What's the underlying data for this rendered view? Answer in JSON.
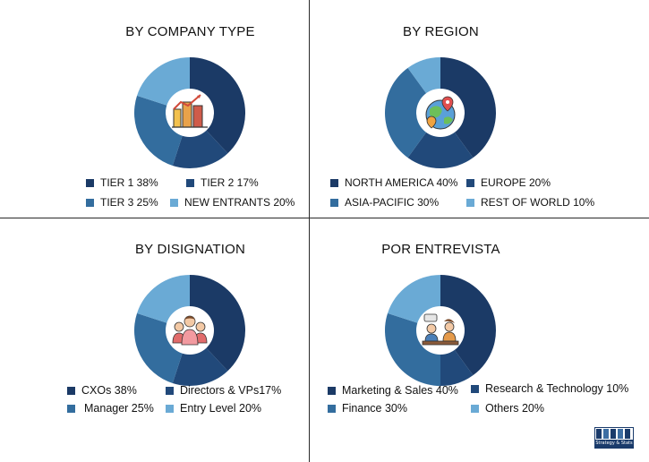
{
  "colors": {
    "dark_navy": "#1b3a66",
    "navy": "#21497a",
    "mid_blue": "#336d9e",
    "light_blue": "#6aaad5"
  },
  "chart_data": [
    {
      "type": "pie",
      "variant": "donut",
      "title": "BY COMPANY TYPE",
      "center_icon": "building-growth-icon",
      "categories": [
        "TIER 1",
        "TIER 2",
        "TIER 3",
        "NEW ENTRANTS"
      ],
      "values": [
        38,
        17,
        25,
        20
      ],
      "unit": "%",
      "colors": [
        "#1b3a66",
        "#21497a",
        "#336d9e",
        "#6aaad5"
      ],
      "legend_labels": [
        "TIER 1 38%",
        "TIER 2 17%",
        "TIER 3 25%",
        "NEW ENTRANTS 20%"
      ]
    },
    {
      "type": "pie",
      "variant": "donut",
      "title": "BY REGION",
      "center_icon": "globe-pin-icon",
      "categories": [
        "NORTH AMERICA",
        "EUROPE",
        "ASIA-PACIFIC",
        "REST OF WORLD"
      ],
      "values": [
        40,
        20,
        30,
        10
      ],
      "unit": "%",
      "colors": [
        "#1b3a66",
        "#21497a",
        "#336d9e",
        "#6aaad5"
      ],
      "legend_labels": [
        "NORTH AMERICA 40%",
        "EUROPE 20%",
        "ASIA-PACIFIC 30%",
        "REST OF WORLD 10%"
      ]
    },
    {
      "type": "pie",
      "variant": "donut",
      "title": "BY DISIGNATION",
      "center_icon": "people-group-icon",
      "categories": [
        "CXOs",
        "Directors & VPs",
        "Manager",
        "Entry Level"
      ],
      "values": [
        38,
        17,
        25,
        20
      ],
      "unit": "%",
      "colors": [
        "#1b3a66",
        "#21497a",
        "#336d9e",
        "#6aaad5"
      ],
      "legend_labels": [
        "CXOs 38%",
        "Directors & VPs17%",
        "Manager 25%",
        "Entry Level 20%"
      ]
    },
    {
      "type": "pie",
      "variant": "donut",
      "title": "POR ENTREVISTA",
      "center_icon": "interview-icon",
      "categories": [
        "Marketing & Sales",
        "Research & Technology",
        "Finance",
        "Others"
      ],
      "values": [
        40,
        10,
        30,
        20
      ],
      "unit": "%",
      "colors": [
        "#1b3a66",
        "#21497a",
        "#336d9e",
        "#6aaad5"
      ],
      "legend_labels": [
        "Marketing & Sales 40%",
        "Research & Technology 10%",
        "Finance 30%",
        "Others 20%"
      ]
    }
  ],
  "logo": {
    "text": "Strategy & Stats",
    "icon": "company-logo-icon"
  }
}
